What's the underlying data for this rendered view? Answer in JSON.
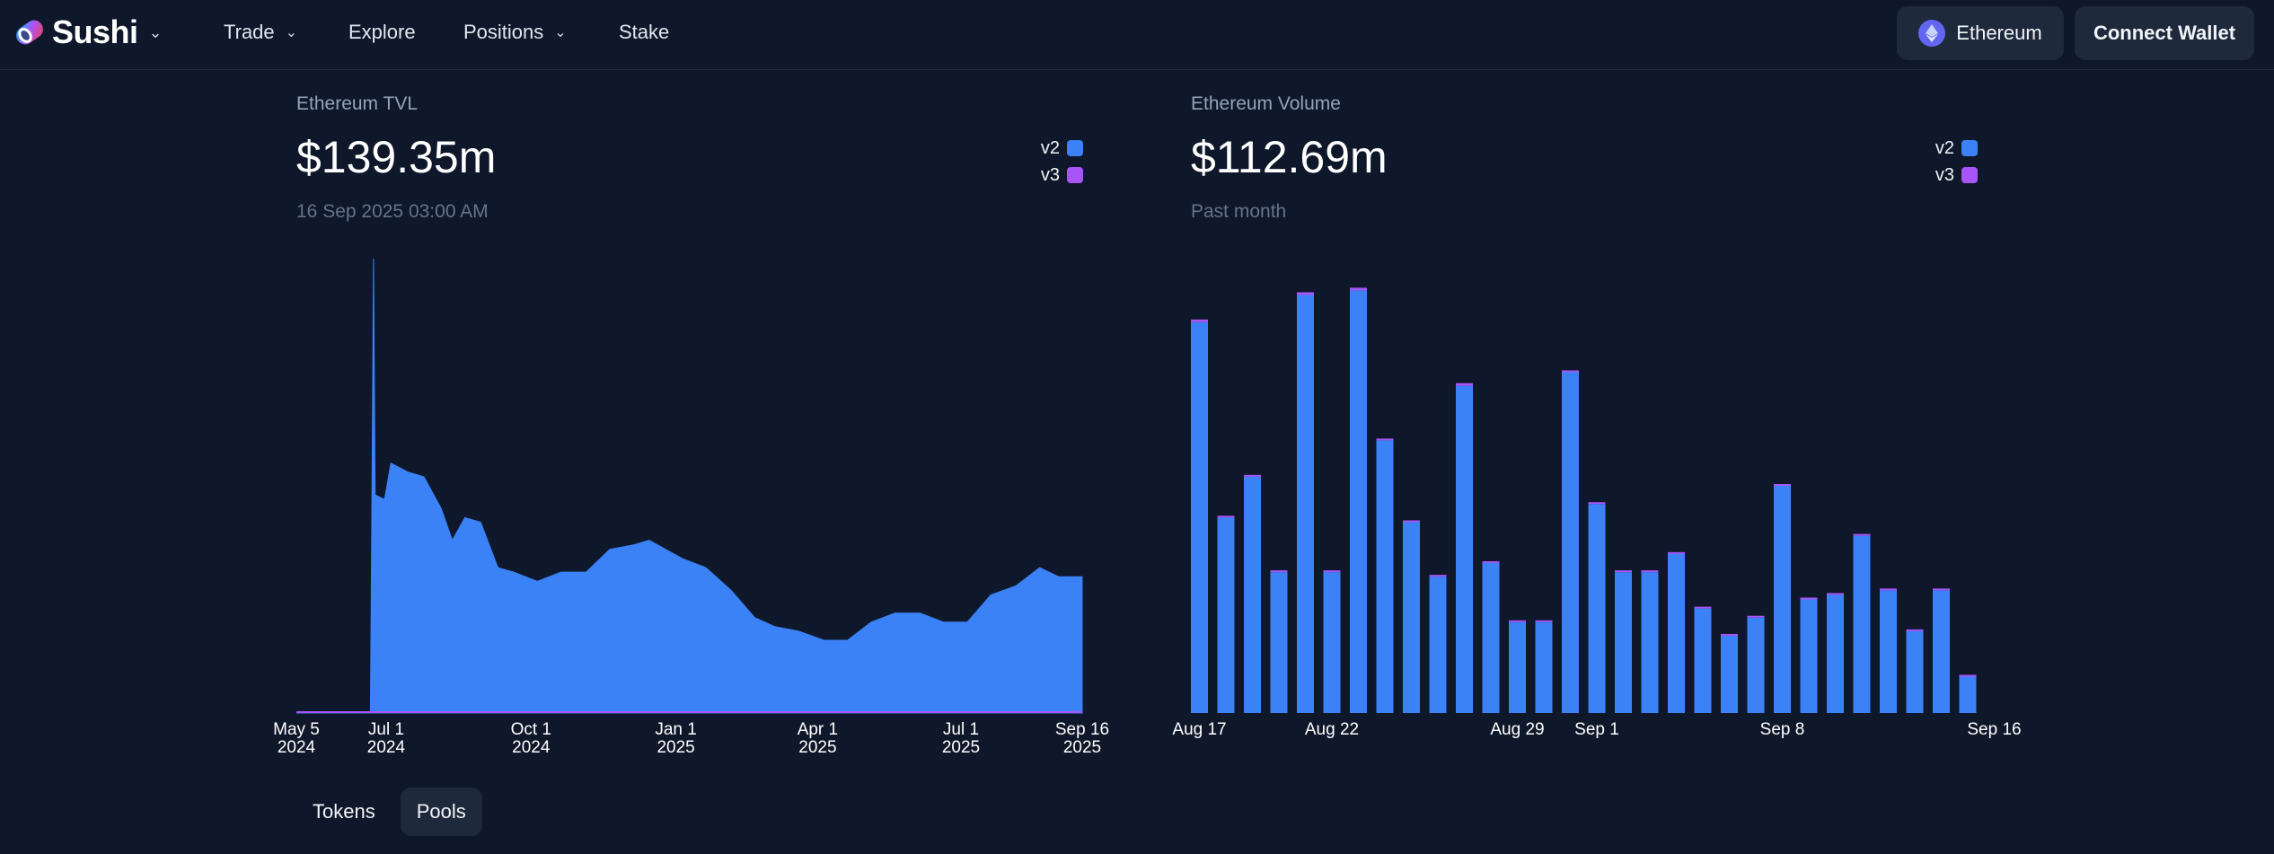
{
  "header": {
    "brand": "Sushi",
    "nav": [
      {
        "label": "Trade",
        "dropdown": true
      },
      {
        "label": "Explore",
        "dropdown": false
      },
      {
        "label": "Positions",
        "dropdown": true
      },
      {
        "label": "Stake",
        "dropdown": false
      }
    ],
    "chain_label": "Ethereum",
    "connect_label": "Connect Wallet"
  },
  "tvl": {
    "label": "Ethereum TVL",
    "value": "$139.35m",
    "date": "16 Sep 2025 03:00 AM",
    "legend": [
      {
        "name": "v2",
        "color": "#3b82f6"
      },
      {
        "name": "v3",
        "color": "#a855f7"
      }
    ]
  },
  "volume": {
    "label": "Ethereum Volume",
    "value": "$112.69m",
    "period": "Past month",
    "legend": [
      {
        "name": "v2",
        "color": "#3b82f6"
      },
      {
        "name": "v3",
        "color": "#a855f7"
      }
    ]
  },
  "chart_data": [
    {
      "type": "area",
      "title": "Ethereum TVL",
      "xlabel": "",
      "ylabel": "",
      "x_ticks": [
        {
          "label": "May 5",
          "year": "2024"
        },
        {
          "label": "Jul 1",
          "year": "2024"
        },
        {
          "label": "Oct 1",
          "year": "2024"
        },
        {
          "label": "Jan 1",
          "year": "2025"
        },
        {
          "label": "Apr 1",
          "year": "2025"
        },
        {
          "label": "Jul 1",
          "year": "2025"
        },
        {
          "label": "Sep 16",
          "year": "2025"
        }
      ],
      "x_range": [
        "2024-05-05",
        "2025-09-16"
      ],
      "y_range": [
        0,
        1
      ],
      "grid": false,
      "series": [
        {
          "name": "v2",
          "color": "#3b82f6",
          "points": [
            [
              "2024-05-05",
              0.0
            ],
            [
              "2024-06-21",
              0.0
            ],
            [
              "2024-06-22",
              0.49
            ],
            [
              "2024-06-23",
              1.0
            ],
            [
              "2024-06-24",
              0.48
            ],
            [
              "2024-06-30",
              0.47
            ],
            [
              "2024-07-04",
              0.55
            ],
            [
              "2024-07-15",
              0.53
            ],
            [
              "2024-07-25",
              0.52
            ],
            [
              "2024-08-05",
              0.45
            ],
            [
              "2024-08-12",
              0.38
            ],
            [
              "2024-08-20",
              0.43
            ],
            [
              "2024-08-30",
              0.42
            ],
            [
              "2024-09-10",
              0.32
            ],
            [
              "2024-09-20",
              0.31
            ],
            [
              "2024-10-05",
              0.29
            ],
            [
              "2024-10-20",
              0.31
            ],
            [
              "2024-11-05",
              0.31
            ],
            [
              "2024-11-20",
              0.36
            ],
            [
              "2024-12-05",
              0.37
            ],
            [
              "2024-12-15",
              0.38
            ],
            [
              "2025-01-05",
              0.34
            ],
            [
              "2025-01-20",
              0.32
            ],
            [
              "2025-02-05",
              0.27
            ],
            [
              "2025-02-20",
              0.21
            ],
            [
              "2025-03-05",
              0.19
            ],
            [
              "2025-03-20",
              0.18
            ],
            [
              "2025-04-05",
              0.16
            ],
            [
              "2025-04-20",
              0.16
            ],
            [
              "2025-05-05",
              0.2
            ],
            [
              "2025-05-20",
              0.22
            ],
            [
              "2025-06-05",
              0.22
            ],
            [
              "2025-06-20",
              0.2
            ],
            [
              "2025-07-05",
              0.2
            ],
            [
              "2025-07-20",
              0.26
            ],
            [
              "2025-08-05",
              0.28
            ],
            [
              "2025-08-20",
              0.32
            ],
            [
              "2025-09-01",
              0.3
            ],
            [
              "2025-09-16",
              0.3
            ]
          ]
        },
        {
          "name": "v3",
          "color": "#a855f7",
          "points": [
            [
              "2024-05-05",
              0.0
            ],
            [
              "2025-09-16",
              0.0
            ]
          ]
        }
      ]
    },
    {
      "type": "bar",
      "title": "Ethereum Volume",
      "xlabel": "",
      "ylabel": "",
      "x_ticks": [
        "Aug 17",
        "Aug 22",
        "Aug 29",
        "Sep 1",
        "Sep 8",
        "Sep 16"
      ],
      "categories": [
        "Aug 17",
        "Aug 18",
        "Aug 19",
        "Aug 20",
        "Aug 21",
        "Aug 22",
        "Aug 23",
        "Aug 24",
        "Aug 25",
        "Aug 26",
        "Aug 27",
        "Aug 28",
        "Aug 29",
        "Aug 30",
        "Aug 31",
        "Sep 1",
        "Sep 2",
        "Sep 3",
        "Sep 4",
        "Sep 5",
        "Sep 6",
        "Sep 7",
        "Sep 8",
        "Sep 9",
        "Sep 10",
        "Sep 11",
        "Sep 12",
        "Sep 13",
        "Sep 14",
        "Sep 15",
        "Sep 16"
      ],
      "stacked": true,
      "ylim": [
        0,
        1
      ],
      "grid": false,
      "series": [
        {
          "name": "v2",
          "color": "#3b82f6",
          "values": [
            0.86,
            0.43,
            0.52,
            0.31,
            0.92,
            0.31,
            0.93,
            0.6,
            0.42,
            0.3,
            0.72,
            0.33,
            0.2,
            0.2,
            0.75,
            0.46,
            0.31,
            0.31,
            0.35,
            0.23,
            0.17,
            0.21,
            0.5,
            0.25,
            0.26,
            0.39,
            0.27,
            0.18,
            0.27,
            0.08,
            0.0
          ]
        },
        {
          "name": "v3",
          "color": "#a855f7",
          "values": [
            0.006,
            0.004,
            0.004,
            0.004,
            0.006,
            0.004,
            0.006,
            0.004,
            0.004,
            0.004,
            0.006,
            0.004,
            0.004,
            0.004,
            0.004,
            0.004,
            0.004,
            0.004,
            0.004,
            0.004,
            0.004,
            0.004,
            0.004,
            0.004,
            0.004,
            0.004,
            0.004,
            0.004,
            0.004,
            0.004,
            0.0
          ]
        }
      ]
    }
  ],
  "tabs": [
    {
      "label": "Tokens",
      "active": false
    },
    {
      "label": "Pools",
      "active": true
    }
  ]
}
